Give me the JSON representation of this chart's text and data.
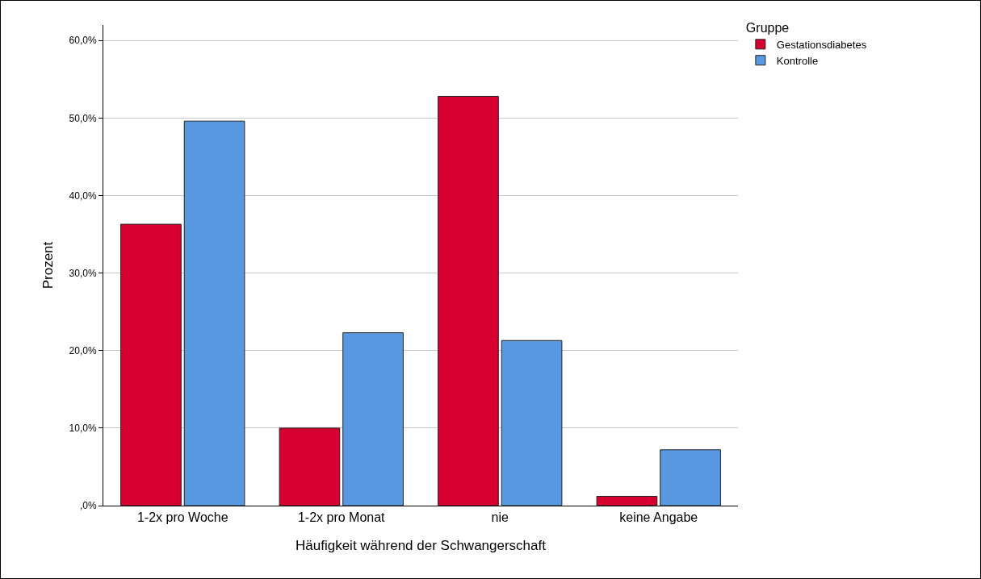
{
  "chart_data": {
    "type": "bar",
    "xlabel": "Häufigkeit während der Schwangerschaft",
    "ylabel": "Prozent",
    "legend_title": "Gruppe",
    "legend": "top right",
    "grid": "y",
    "categories": [
      "1-2x pro Woche",
      "1-2x pro Monat",
      "nie",
      "keine Angabe"
    ],
    "series": [
      {
        "name": "Gestationsdiabetes",
        "color": "#d5002f",
        "values": [
          36.3,
          10.0,
          52.8,
          1.2
        ]
      },
      {
        "name": "Kontrolle",
        "color": "#5899e2",
        "values": [
          49.6,
          22.3,
          21.3,
          7.2
        ]
      }
    ],
    "ylim": [
      0,
      62
    ],
    "yticks": [
      {
        "value": 0,
        "label": ",0%"
      },
      {
        "value": 10,
        "label": "10,0%"
      },
      {
        "value": 20,
        "label": "20,0%"
      },
      {
        "value": 30,
        "label": "30,0%"
      },
      {
        "value": 40,
        "label": "40,0%"
      },
      {
        "value": 50,
        "label": "50,0%"
      },
      {
        "value": 60,
        "label": "60,0%"
      }
    ]
  }
}
